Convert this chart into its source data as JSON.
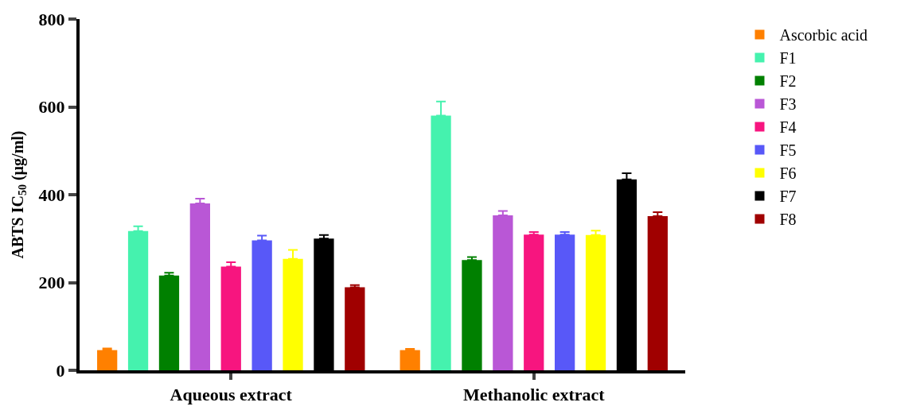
{
  "chart_data": {
    "type": "bar",
    "ylabel": "ABTS IC$_{50}$ (µg/ml)",
    "categories": [
      "Aqueous extract",
      "Methanolic extract"
    ],
    "ylim": [
      0,
      800
    ],
    "yticks": [
      0,
      200,
      400,
      600,
      800
    ],
    "legend": "top right",
    "series": [
      {
        "name": "Ascorbic acid",
        "color": "#ff8000",
        "values": [
          46,
          46
        ],
        "errors": [
          [
            46,
            50
          ],
          [
            46,
            49
          ]
        ]
      },
      {
        "name": "F1",
        "color": "#45f2ae",
        "values": [
          317,
          580
        ],
        "errors": [
          [
            317,
            328
          ],
          [
            580,
            612
          ]
        ]
      },
      {
        "name": "F2",
        "color": "#008000",
        "values": [
          216,
          251
        ],
        "errors": [
          [
            216,
            222
          ],
          [
            251,
            258
          ]
        ]
      },
      {
        "name": "F3",
        "color": "#b957d6",
        "values": [
          380,
          353
        ],
        "errors": [
          [
            380,
            391
          ],
          [
            353,
            363
          ]
        ]
      },
      {
        "name": "F4",
        "color": "#f7157f",
        "values": [
          236,
          309
        ],
        "errors": [
          [
            236,
            246
          ],
          [
            309,
            315
          ]
        ]
      },
      {
        "name": "F5",
        "color": "#5858f8",
        "values": [
          296,
          309
        ],
        "errors": [
          [
            296,
            307
          ],
          [
            309,
            315
          ]
        ]
      },
      {
        "name": "F6",
        "color": "#ffff00",
        "values": [
          254,
          308
        ],
        "errors": [
          [
            254,
            274
          ],
          [
            308,
            318
          ]
        ]
      },
      {
        "name": "F7",
        "color": "#000000",
        "values": [
          300,
          435
        ],
        "errors": [
          [
            300,
            308
          ],
          [
            435,
            449
          ]
        ]
      },
      {
        "name": "F8",
        "color": "#a00000",
        "values": [
          189,
          351
        ],
        "errors": [
          [
            189,
            194
          ],
          [
            351,
            360
          ]
        ]
      }
    ]
  }
}
